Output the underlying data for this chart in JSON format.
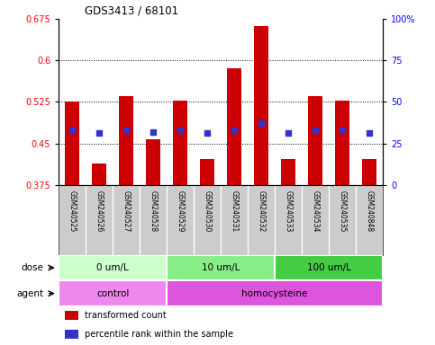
{
  "title": "GDS3413 / 68101",
  "samples": [
    "GSM240525",
    "GSM240526",
    "GSM240527",
    "GSM240528",
    "GSM240529",
    "GSM240530",
    "GSM240531",
    "GSM240532",
    "GSM240533",
    "GSM240534",
    "GSM240535",
    "GSM240848"
  ],
  "transformed_count": [
    0.525,
    0.413,
    0.535,
    0.458,
    0.527,
    0.422,
    0.585,
    0.663,
    0.422,
    0.535,
    0.528,
    0.422
  ],
  "percentile_rank_left": [
    0.474,
    0.468,
    0.474,
    0.47,
    0.474,
    0.468,
    0.474,
    0.487,
    0.468,
    0.474,
    0.474,
    0.468
  ],
  "ylim_left": [
    0.375,
    0.675
  ],
  "yticks_left": [
    0.375,
    0.45,
    0.525,
    0.6,
    0.675
  ],
  "ylim_right": [
    0,
    100
  ],
  "yticks_right": [
    0,
    25,
    50,
    75,
    100
  ],
  "ytick_labels_right": [
    "0",
    "25",
    "50",
    "75",
    "100%"
  ],
  "bar_color": "#cc0000",
  "dot_color": "#3333cc",
  "bar_width": 0.55,
  "dose_groups": [
    {
      "label": "0 um/L",
      "start": 0,
      "end": 4,
      "color": "#ccffcc"
    },
    {
      "label": "10 um/L",
      "start": 4,
      "end": 8,
      "color": "#88ee88"
    },
    {
      "label": "100 um/L",
      "start": 8,
      "end": 12,
      "color": "#44cc44"
    }
  ],
  "agent_groups": [
    {
      "label": "control",
      "start": 0,
      "end": 4,
      "color": "#ee88ee"
    },
    {
      "label": "homocysteine",
      "start": 4,
      "end": 12,
      "color": "#dd55dd"
    }
  ],
  "legend_items": [
    {
      "color": "#cc0000",
      "label": "transformed count"
    },
    {
      "color": "#3333cc",
      "label": "percentile rank within the sample"
    }
  ],
  "sample_bg_color": "#cccccc",
  "plot_bg_color": "#ffffff"
}
